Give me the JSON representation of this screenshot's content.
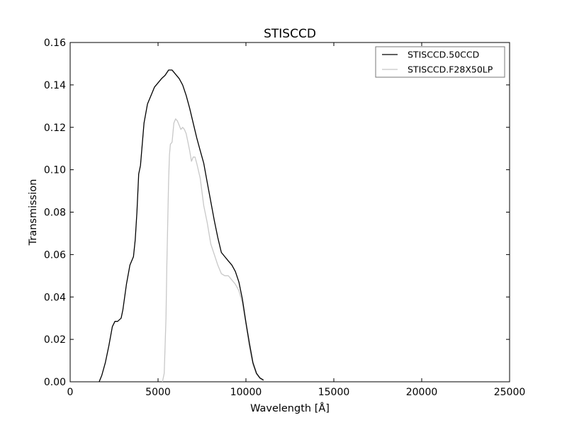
{
  "chart_data": {
    "type": "line",
    "title": "STISCCD",
    "xlabel": "Wavelength [Å]",
    "ylabel": "Transmission",
    "xlim": [
      0,
      25000
    ],
    "ylim": [
      0,
      0.16
    ],
    "xticks": [
      0,
      5000,
      10000,
      15000,
      20000,
      25000
    ],
    "xtick_labels": [
      "0",
      "5000",
      "10000",
      "15000",
      "20000",
      "25000"
    ],
    "yticks": [
      0.0,
      0.02,
      0.04,
      0.06,
      0.08,
      0.1,
      0.12,
      0.14,
      0.16
    ],
    "ytick_labels": [
      "0.00",
      "0.02",
      "0.04",
      "0.06",
      "0.08",
      "0.10",
      "0.12",
      "0.14",
      "0.16"
    ],
    "grid": false,
    "legend_position": "top-right",
    "series": [
      {
        "name": "STISCCD.50CCD",
        "color": "#000000",
        "x": [
          1650,
          1800,
          2000,
          2200,
          2400,
          2550,
          2700,
          2900,
          3000,
          3200,
          3400,
          3600,
          3700,
          3800,
          3900,
          4000,
          4100,
          4200,
          4400,
          4600,
          4800,
          5000,
          5200,
          5400,
          5600,
          5800,
          6000,
          6200,
          6400,
          6600,
          6800,
          7000,
          7200,
          7400,
          7600,
          7800,
          8000,
          8200,
          8400,
          8600,
          8800,
          9000,
          9200,
          9400,
          9600,
          9800,
          10000,
          10200,
          10400,
          10600,
          10800,
          11000
        ],
        "y": [
          0.0,
          0.003,
          0.009,
          0.017,
          0.026,
          0.0285,
          0.0285,
          0.03,
          0.034,
          0.046,
          0.055,
          0.059,
          0.067,
          0.08,
          0.098,
          0.102,
          0.112,
          0.122,
          0.131,
          0.135,
          0.139,
          0.141,
          0.143,
          0.1445,
          0.147,
          0.147,
          0.145,
          0.143,
          0.14,
          0.135,
          0.129,
          0.122,
          0.115,
          0.109,
          0.103,
          0.094,
          0.085,
          0.076,
          0.068,
          0.061,
          0.059,
          0.057,
          0.055,
          0.052,
          0.047,
          0.039,
          0.028,
          0.018,
          0.009,
          0.004,
          0.0018,
          0.0008
        ]
      },
      {
        "name": "STISCCD.F28X50LP",
        "color": "#c8c8c8",
        "x": [
          5250,
          5350,
          5450,
          5500,
          5600,
          5650,
          5700,
          5800,
          5900,
          6000,
          6100,
          6200,
          6300,
          6400,
          6500,
          6600,
          6700,
          6800,
          6900,
          7000,
          7100,
          7200,
          7400,
          7600,
          7800,
          8000,
          8200,
          8400,
          8600,
          8800,
          9000,
          9200,
          9400,
          9600,
          9800,
          10000,
          10200,
          10400,
          10600,
          10800,
          11000
        ],
        "y": [
          0.0,
          0.004,
          0.03,
          0.055,
          0.095,
          0.107,
          0.112,
          0.113,
          0.122,
          0.124,
          0.123,
          0.121,
          0.119,
          0.12,
          0.119,
          0.117,
          0.113,
          0.109,
          0.104,
          0.106,
          0.106,
          0.103,
          0.096,
          0.083,
          0.075,
          0.065,
          0.06,
          0.055,
          0.051,
          0.05,
          0.05,
          0.048,
          0.046,
          0.043,
          0.037,
          0.027,
          0.016,
          0.008,
          0.0035,
          0.0015,
          0.0005
        ]
      }
    ]
  }
}
